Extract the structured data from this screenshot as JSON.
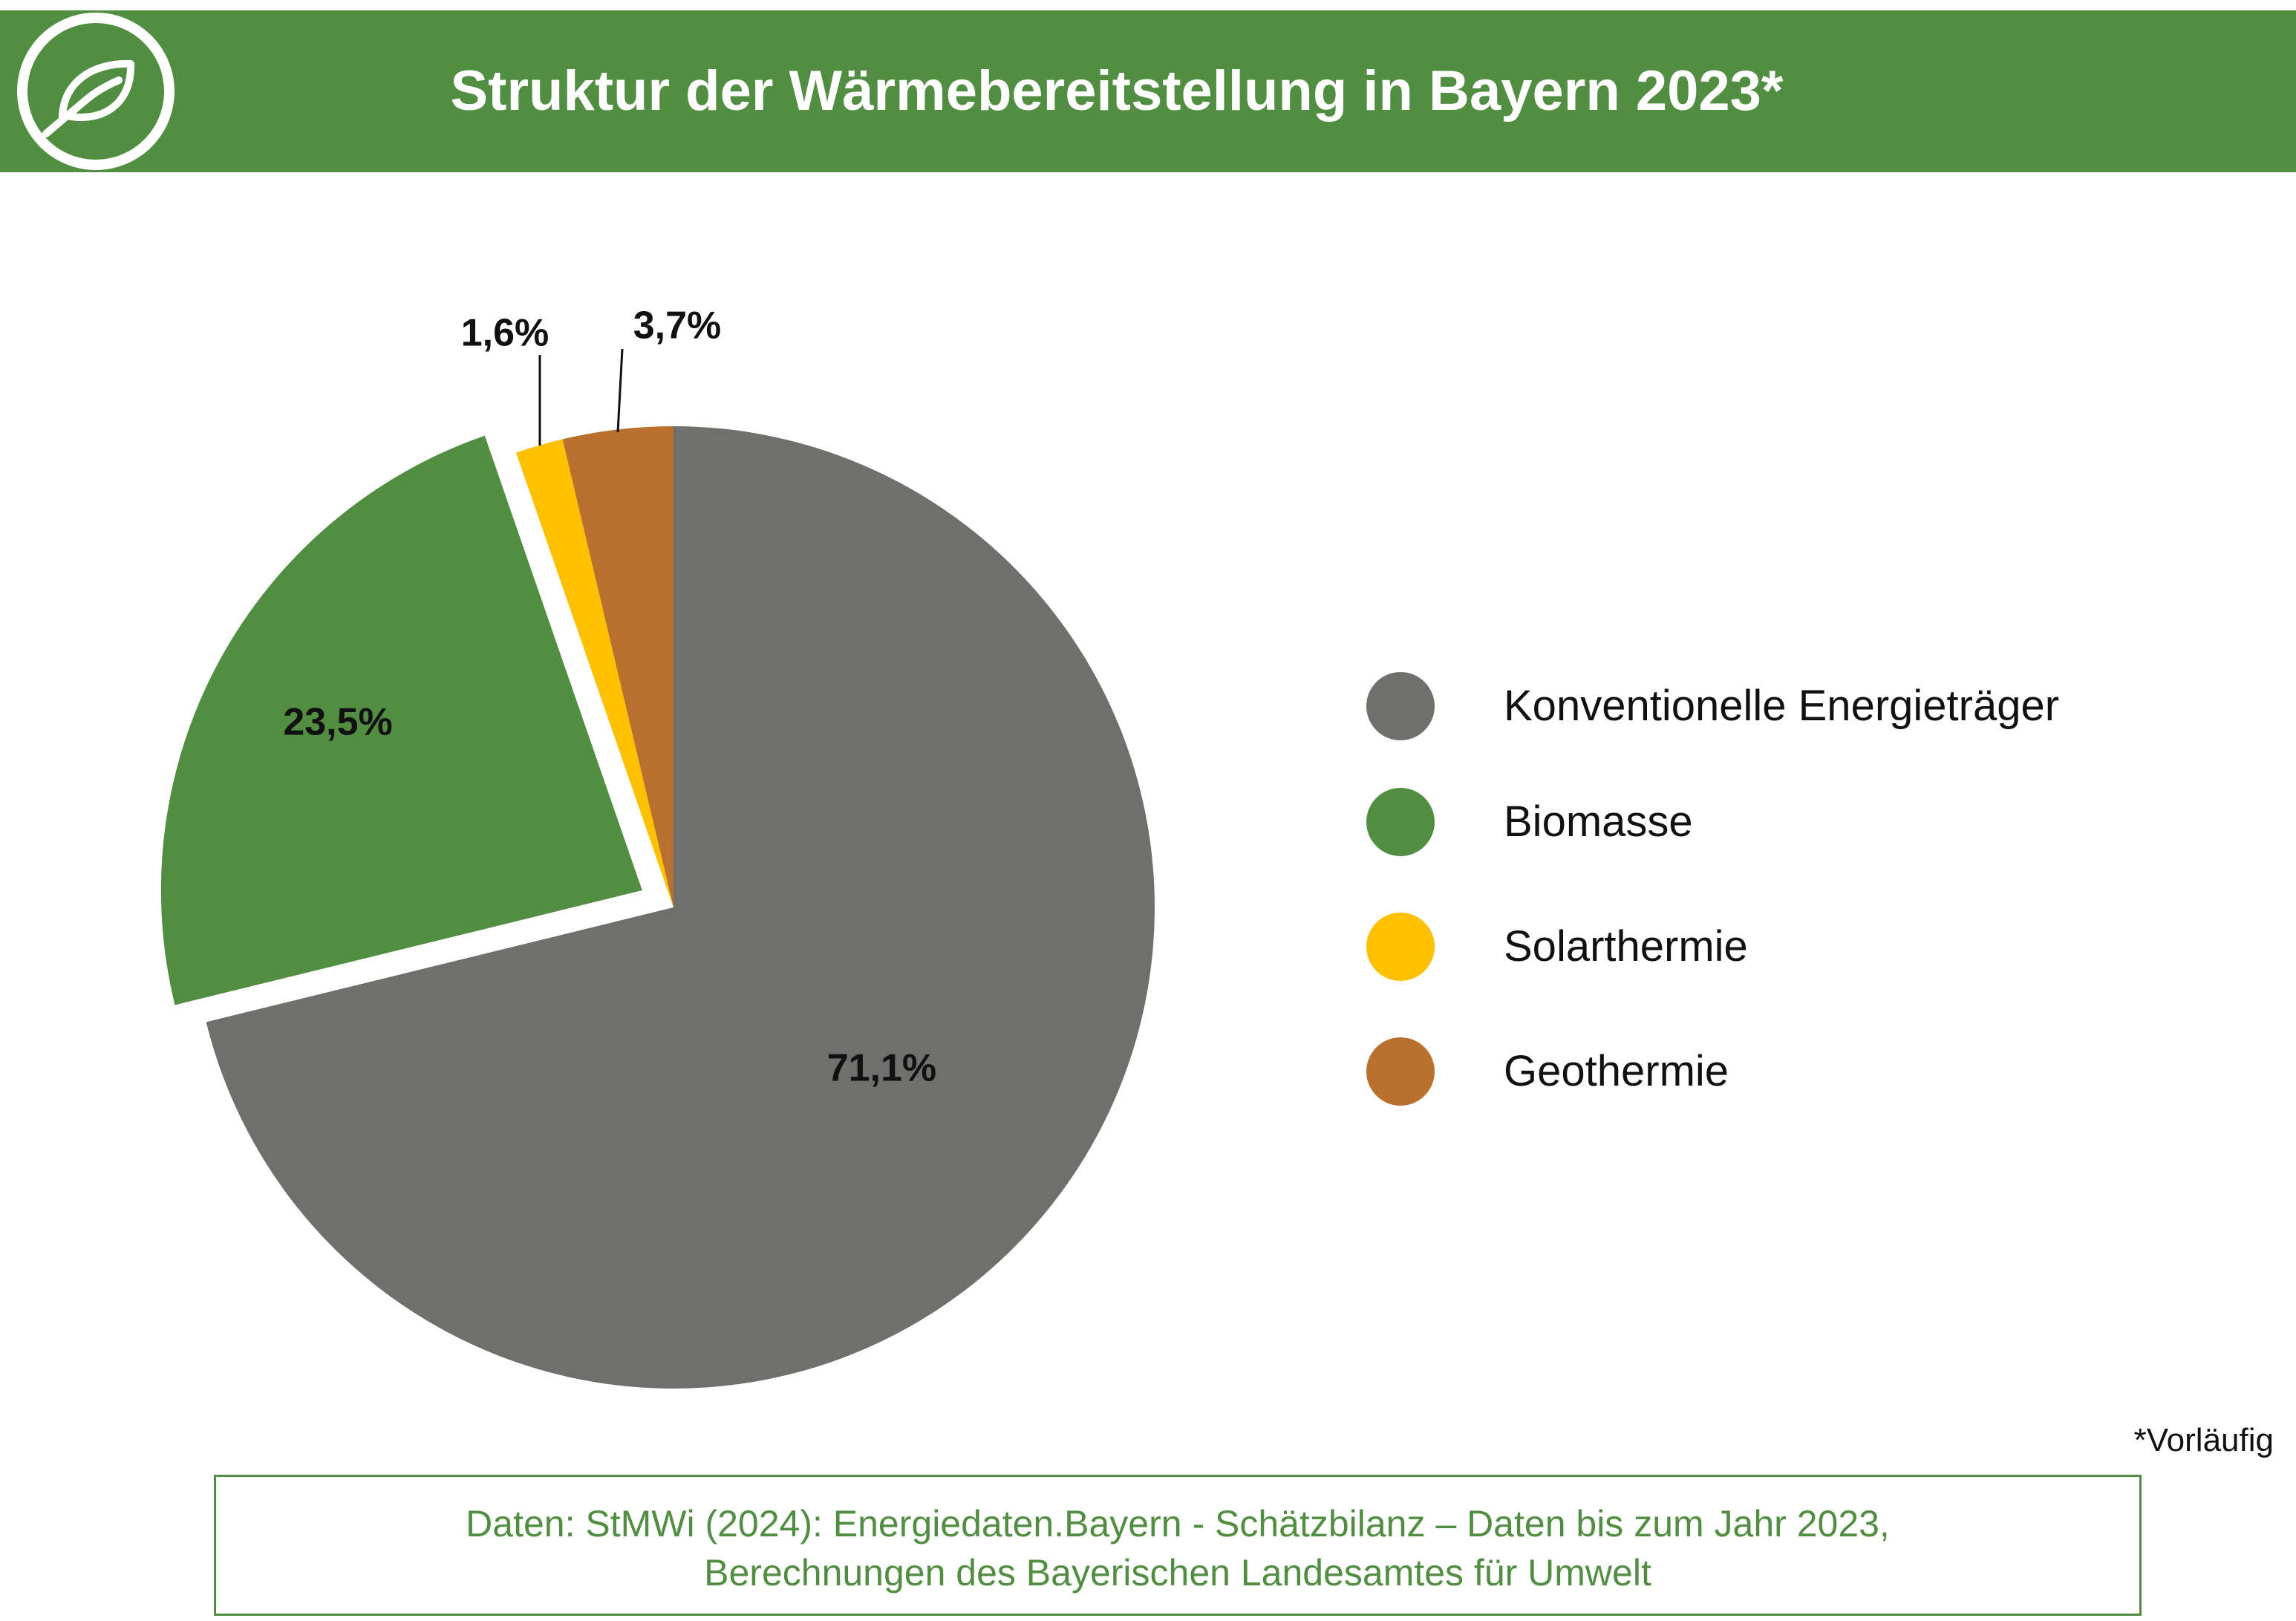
{
  "header": {
    "title": "Struktur der Wärmebereitstellung in Bayern 2023*",
    "logo_icon": "leaf-icon",
    "background_color": "#518E42"
  },
  "chart_data": {
    "type": "pie",
    "title": "Struktur der Wärmebereitstellung in Bayern 2023*",
    "exploded": "Biomasse",
    "slices": [
      {
        "name": "Konventionelle Energieträger",
        "value": 71.1,
        "label": "71,1%",
        "color": "#6F6F6D"
      },
      {
        "name": "Biomasse",
        "value": 23.5,
        "label": "23,5%",
        "color": "#518E42"
      },
      {
        "name": "Solarthermie",
        "value": 1.6,
        "label": "1,6%",
        "color": "#FFC000"
      },
      {
        "name": "Geothermie",
        "value": 3.7,
        "label": "3,7%",
        "color": "#B8702C"
      }
    ],
    "legend_position": "right"
  },
  "legend": {
    "items": [
      {
        "label": "Konventionelle Energieträger",
        "color": "#6F6F6D"
      },
      {
        "label": "Biomasse",
        "color": "#518E42"
      },
      {
        "label": "Solarthermie",
        "color": "#FFC000"
      },
      {
        "label": "Geothermie",
        "color": "#B8702C"
      }
    ]
  },
  "footnote": "*Vorläufig",
  "source": {
    "line1": "Daten: StMWi (2024): Energiedaten.Bayern - Schätzbilanz – Daten bis zum Jahr 2023,",
    "line2": "Berechnungen des Bayerischen Landesamtes für Umwelt"
  }
}
